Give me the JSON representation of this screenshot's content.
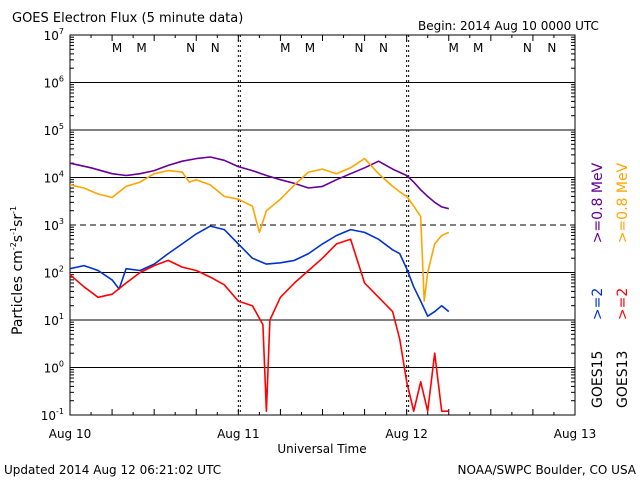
{
  "header": {
    "title": "GOES Electron Flux (5 minute data)",
    "begin": "Begin: 2014 Aug 10 0000 UTC"
  },
  "footer": {
    "updated": "Updated 2014 Aug 12 06:21:02 UTC",
    "credit": "NOAA/SWPC Boulder, CO USA"
  },
  "colors": {
    "goes13_mev08": "#ffa500",
    "goes15_mev08": "#660099",
    "goes13_mev2": "#ff0000",
    "goes15_mev2": "#0033cc",
    "marker_m_red": "#ff0000",
    "marker_m_blue": "#0000cc",
    "marker_n_red": "#ff0000",
    "marker_n_blue": "#0000cc"
  },
  "chart_data": {
    "type": "line",
    "title": "GOES Electron Flux (5 minute data)",
    "xlabel": "Universal Time",
    "ylabel": "Particles cm-2s-1sr-1",
    "yscale": "log",
    "xlim": [
      "2014-08-10 00:00",
      "2014-08-13 00:00"
    ],
    "ylim": [
      0.1,
      10000000
    ],
    "x_ticks": [
      "Aug 10",
      "Aug 11",
      "Aug 12",
      "Aug 13"
    ],
    "y_ticks": [
      "10-1",
      "100",
      "101",
      "102",
      "103",
      "104",
      "105",
      "106",
      "107"
    ],
    "threshold_line": {
      "value": 1000,
      "style": "dashed"
    },
    "midnight_markers": [
      "M",
      "M",
      "N",
      "N",
      "M",
      "M",
      "N",
      "N",
      "M",
      "M",
      "N",
      "N"
    ],
    "right_legend": {
      "col1": [
        "GOES15",
        ">=2",
        ">=0.8 MeV"
      ],
      "col2": [
        "GOES13",
        ">=2",
        ">=0.8 MeV"
      ]
    },
    "series": [
      {
        "name": "GOES15 >=0.8 MeV",
        "color": "#660099",
        "x_hours": [
          0,
          3,
          6,
          8,
          10,
          12,
          14,
          16,
          18,
          20,
          22,
          24,
          26,
          28,
          30,
          32,
          34,
          36,
          38,
          40,
          42,
          44,
          46,
          48,
          49,
          50,
          51,
          52,
          53,
          54
        ],
        "values": [
          20000,
          16000,
          12000,
          11000,
          12000,
          14000,
          18000,
          22000,
          25000,
          27000,
          23000,
          17000,
          14000,
          11000,
          9000,
          7500,
          6000,
          6500,
          9000,
          12000,
          16000,
          22000,
          15000,
          11000,
          8000,
          5500,
          4000,
          3000,
          2400,
          2200
        ]
      },
      {
        "name": "GOES13 >=0.8 MeV",
        "color": "#ffa500",
        "x_hours": [
          0,
          2,
          4,
          6,
          8,
          10,
          12,
          14,
          16,
          17,
          18,
          20,
          22,
          24,
          26,
          27,
          28,
          30,
          32,
          34,
          36,
          38,
          40,
          42,
          44,
          46,
          47,
          48,
          49,
          50,
          50.5,
          51,
          52,
          53,
          54
        ],
        "values": [
          7000,
          6000,
          4500,
          3800,
          6500,
          8000,
          12000,
          14000,
          13000,
          8000,
          9000,
          7000,
          4000,
          3500,
          2500,
          700,
          2000,
          3500,
          7000,
          13000,
          15000,
          12000,
          16000,
          25000,
          12000,
          6500,
          5000,
          4000,
          2500,
          1500,
          25,
          100,
          400,
          600,
          700
        ]
      },
      {
        "name": "GOES15 >=2 MeV",
        "color": "#0033cc",
        "x_hours": [
          0,
          2,
          4,
          6,
          7,
          8,
          10,
          12,
          14,
          16,
          18,
          20,
          22,
          24,
          26,
          28,
          30,
          32,
          34,
          36,
          38,
          40,
          42,
          44,
          46,
          47,
          48,
          49,
          50,
          51,
          52,
          53,
          54
        ],
        "values": [
          120,
          140,
          110,
          70,
          45,
          120,
          110,
          150,
          250,
          400,
          650,
          950,
          800,
          400,
          200,
          150,
          160,
          180,
          250,
          400,
          600,
          800,
          700,
          500,
          300,
          250,
          120,
          50,
          25,
          12,
          15,
          20,
          15
        ]
      },
      {
        "name": "GOES13 >=2 MeV",
        "color": "#ff0000",
        "x_hours": [
          0,
          2,
          4,
          6,
          8,
          10,
          12,
          14,
          16,
          18,
          20,
          22,
          24,
          26,
          27.5,
          28,
          28.5,
          30,
          32,
          34,
          36,
          38,
          40,
          42,
          44,
          46,
          47,
          48,
          49,
          50,
          51,
          52,
          53,
          54
        ],
        "values": [
          90,
          50,
          30,
          35,
          60,
          100,
          140,
          180,
          130,
          110,
          80,
          55,
          25,
          20,
          8,
          0.12,
          10,
          30,
          60,
          110,
          200,
          400,
          500,
          60,
          30,
          15,
          4,
          0.5,
          0.12,
          0.5,
          0.12,
          2,
          0.12,
          0.12
        ]
      }
    ]
  }
}
